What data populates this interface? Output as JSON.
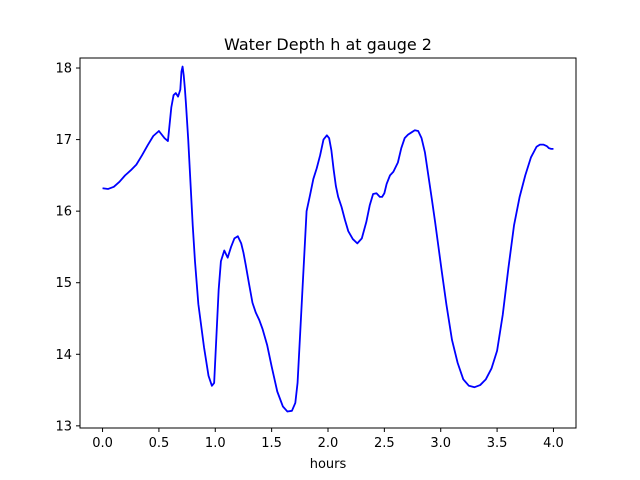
{
  "chart_data": {
    "type": "line",
    "title": "Water Depth h at gauge 2",
    "xlabel": "hours",
    "ylabel": "",
    "xlim": [
      -0.2,
      4.2
    ],
    "ylim": [
      12.97,
      18.14
    ],
    "xticks": [
      0.0,
      0.5,
      1.0,
      1.5,
      2.0,
      2.5,
      3.0,
      3.5,
      4.0
    ],
    "xtick_labels": [
      "0.0",
      "0.5",
      "1.0",
      "1.5",
      "2.0",
      "2.5",
      "3.0",
      "3.5",
      "4.0"
    ],
    "yticks": [
      13,
      14,
      15,
      16,
      17,
      18
    ],
    "ytick_labels": [
      "13",
      "14",
      "15",
      "16",
      "17",
      "18"
    ],
    "grid": false,
    "series": [
      {
        "color": "#0000ff",
        "x": [
          0.0,
          0.05,
          0.1,
          0.15,
          0.2,
          0.25,
          0.3,
          0.35,
          0.4,
          0.45,
          0.5,
          0.55,
          0.58,
          0.61,
          0.63,
          0.65,
          0.67,
          0.69,
          0.7,
          0.71,
          0.72,
          0.73,
          0.74,
          0.76,
          0.78,
          0.8,
          0.82,
          0.85,
          0.9,
          0.94,
          0.97,
          0.99,
          1.01,
          1.03,
          1.05,
          1.08,
          1.11,
          1.14,
          1.17,
          1.2,
          1.23,
          1.25,
          1.27,
          1.3,
          1.33,
          1.36,
          1.39,
          1.42,
          1.46,
          1.5,
          1.55,
          1.6,
          1.64,
          1.68,
          1.71,
          1.73,
          1.75,
          1.77,
          1.79,
          1.81,
          1.84,
          1.87,
          1.9,
          1.93,
          1.96,
          1.99,
          2.01,
          2.03,
          2.05,
          2.07,
          2.09,
          2.12,
          2.15,
          2.18,
          2.22,
          2.26,
          2.3,
          2.34,
          2.37,
          2.4,
          2.43,
          2.46,
          2.48,
          2.5,
          2.52,
          2.55,
          2.58,
          2.62,
          2.65,
          2.68,
          2.71,
          2.74,
          2.77,
          2.8,
          2.83,
          2.86,
          2.89,
          2.92,
          2.95,
          2.98,
          3.01,
          3.05,
          3.1,
          3.15,
          3.2,
          3.25,
          3.3,
          3.35,
          3.4,
          3.45,
          3.5,
          3.55,
          3.6,
          3.65,
          3.7,
          3.75,
          3.8,
          3.85,
          3.88,
          3.91,
          3.94,
          3.96,
          3.98,
          4.0
        ],
        "y": [
          16.32,
          16.31,
          16.34,
          16.41,
          16.5,
          16.57,
          16.65,
          16.78,
          16.92,
          17.05,
          17.12,
          17.02,
          16.98,
          17.45,
          17.62,
          17.65,
          17.6,
          17.7,
          17.95,
          18.02,
          17.9,
          17.72,
          17.5,
          17.0,
          16.4,
          15.8,
          15.3,
          14.7,
          14.1,
          13.7,
          13.56,
          13.6,
          14.25,
          14.9,
          15.3,
          15.45,
          15.35,
          15.5,
          15.62,
          15.65,
          15.55,
          15.42,
          15.25,
          14.98,
          14.72,
          14.58,
          14.48,
          14.35,
          14.13,
          13.83,
          13.48,
          13.27,
          13.2,
          13.21,
          13.32,
          13.6,
          14.2,
          14.8,
          15.4,
          16.0,
          16.22,
          16.45,
          16.6,
          16.78,
          17.0,
          17.06,
          17.02,
          16.85,
          16.58,
          16.35,
          16.2,
          16.06,
          15.88,
          15.72,
          15.61,
          15.55,
          15.62,
          15.85,
          16.08,
          16.24,
          16.25,
          16.2,
          16.2,
          16.25,
          16.38,
          16.5,
          16.55,
          16.68,
          16.88,
          17.02,
          17.07,
          17.1,
          17.13,
          17.12,
          17.02,
          16.82,
          16.5,
          16.18,
          15.85,
          15.5,
          15.15,
          14.7,
          14.2,
          13.88,
          13.65,
          13.56,
          13.54,
          13.57,
          13.65,
          13.8,
          14.05,
          14.55,
          15.2,
          15.8,
          16.2,
          16.5,
          16.75,
          16.9,
          16.93,
          16.93,
          16.91,
          16.88,
          16.87,
          16.87
        ]
      }
    ]
  }
}
